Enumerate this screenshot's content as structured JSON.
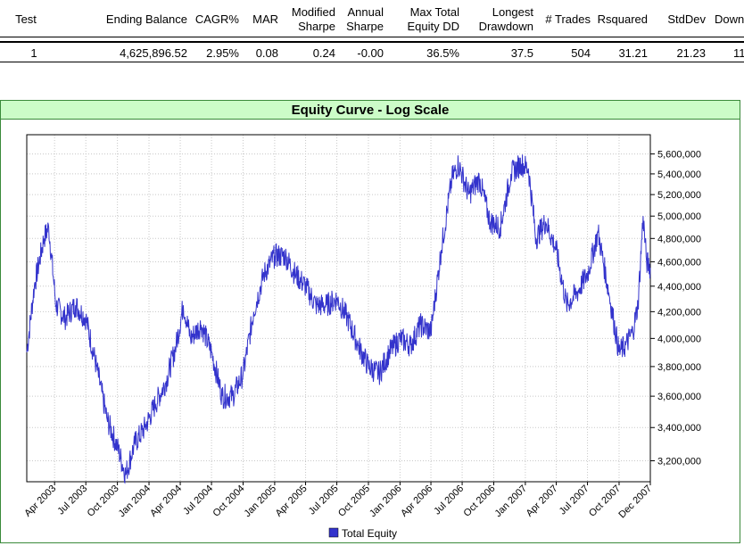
{
  "results_table": {
    "headers": [
      {
        "key": "test",
        "lines": [
          "Test"
        ]
      },
      {
        "key": "ending_balance",
        "lines": [
          "Ending Balance"
        ]
      },
      {
        "key": "cagr",
        "lines": [
          "CAGR%"
        ]
      },
      {
        "key": "mar",
        "lines": [
          "MAR"
        ]
      },
      {
        "key": "modified_sharpe",
        "lines": [
          "Modified",
          "Sharpe"
        ]
      },
      {
        "key": "annual_sharpe",
        "lines": [
          "Annual",
          "Sharpe"
        ]
      },
      {
        "key": "max_dd",
        "lines": [
          "Max Total",
          "Equity DD"
        ]
      },
      {
        "key": "longest_dd",
        "lines": [
          "Longest",
          "Drawdown"
        ]
      },
      {
        "key": "trades",
        "lines": [
          "# Trades"
        ]
      },
      {
        "key": "rsquared",
        "lines": [
          "Rsquared"
        ]
      },
      {
        "key": "stddev",
        "lines": [
          "StdDev"
        ]
      },
      {
        "key": "down",
        "lines": [
          "Down"
        ]
      }
    ],
    "row": [
      "1",
      "4,625,896.52",
      "2.95%",
      "0.08",
      "0.24",
      "-0.00",
      "36.5%",
      "37.5",
      "504",
      "31.21",
      "21.23",
      "11"
    ]
  },
  "chart_data": {
    "type": "line",
    "title": "Equity Curve - Log Scale",
    "y_scale": "log",
    "ylim": [
      3080000,
      5800000
    ],
    "y_ticks": [
      3200000,
      3400000,
      3600000,
      3800000,
      4000000,
      4200000,
      4400000,
      4600000,
      4800000,
      5000000,
      5200000,
      5400000,
      5600000
    ],
    "y_tick_labels": [
      "3,200,000",
      "3,400,000",
      "3,600,000",
      "3,800,000",
      "4,000,000",
      "4,200,000",
      "4,400,000",
      "4,600,000",
      "4,800,000",
      "5,000,000",
      "5,200,000",
      "5,400,000",
      "5,600,000"
    ],
    "xlim": [
      "2003-01-10",
      "2007-12-31"
    ],
    "x_ticks": [
      "2003-04-01",
      "2003-07-01",
      "2003-10-01",
      "2004-01-01",
      "2004-04-01",
      "2004-07-01",
      "2004-10-01",
      "2005-01-01",
      "2005-04-01",
      "2005-07-01",
      "2005-10-01",
      "2006-01-01",
      "2006-04-01",
      "2006-07-01",
      "2006-10-01",
      "2007-01-01",
      "2007-04-01",
      "2007-07-01",
      "2007-10-01",
      "2007-12-31"
    ],
    "x_tick_labels": [
      "Apr 2003",
      "Jul 2003",
      "Oct 2003",
      "Jan 2004",
      "Apr 2004",
      "Jul 2004",
      "Oct 2004",
      "Jan 2005",
      "Apr 2005",
      "Jul 2005",
      "Oct 2005",
      "Jan 2006",
      "Apr 2006",
      "Jul 2006",
      "Oct 2006",
      "Jan 2007",
      "Apr 2007",
      "Jul 2007",
      "Oct 2007",
      "Dec 2007"
    ],
    "grid": true,
    "legend_position": "bottom",
    "series": [
      {
        "name": "Total Equity",
        "color": "#3333cc",
        "points": [
          [
            "2003-01-10",
            3900000
          ],
          [
            "2003-02-01",
            4400000
          ],
          [
            "2003-03-01",
            4800000
          ],
          [
            "2003-03-15",
            4900000
          ],
          [
            "2003-04-05",
            4250000
          ],
          [
            "2003-05-01",
            4150000
          ],
          [
            "2003-06-01",
            4250000
          ],
          [
            "2003-07-01",
            4150000
          ],
          [
            "2003-08-01",
            3800000
          ],
          [
            "2003-09-01",
            3450000
          ],
          [
            "2003-10-01",
            3280000
          ],
          [
            "2003-10-25",
            3120000
          ],
          [
            "2003-11-20",
            3300000
          ],
          [
            "2003-12-20",
            3400000
          ],
          [
            "2004-01-20",
            3550000
          ],
          [
            "2004-02-20",
            3700000
          ],
          [
            "2004-03-20",
            3950000
          ],
          [
            "2004-04-10",
            4250000
          ],
          [
            "2004-05-01",
            4000000
          ],
          [
            "2004-06-01",
            4100000
          ],
          [
            "2004-07-01",
            3900000
          ],
          [
            "2004-08-01",
            3600000
          ],
          [
            "2004-09-01",
            3600000
          ],
          [
            "2004-10-01",
            3750000
          ],
          [
            "2004-11-01",
            4200000
          ],
          [
            "2004-12-01",
            4500000
          ],
          [
            "2005-01-01",
            4650000
          ],
          [
            "2005-02-01",
            4650000
          ],
          [
            "2005-03-01",
            4500000
          ],
          [
            "2005-04-01",
            4400000
          ],
          [
            "2005-05-01",
            4250000
          ],
          [
            "2005-06-01",
            4250000
          ],
          [
            "2005-07-01",
            4300000
          ],
          [
            "2005-08-01",
            4150000
          ],
          [
            "2005-09-01",
            3950000
          ],
          [
            "2005-10-01",
            3800000
          ],
          [
            "2005-11-01",
            3750000
          ],
          [
            "2005-12-01",
            3900000
          ],
          [
            "2006-01-01",
            4000000
          ],
          [
            "2006-02-01",
            3950000
          ],
          [
            "2006-03-01",
            4100000
          ],
          [
            "2006-04-01",
            4050000
          ],
          [
            "2006-05-01",
            4700000
          ],
          [
            "2006-06-01",
            5350000
          ],
          [
            "2006-06-20",
            5500000
          ],
          [
            "2006-07-20",
            5200000
          ],
          [
            "2006-08-20",
            5350000
          ],
          [
            "2006-09-20",
            4950000
          ],
          [
            "2006-10-20",
            4900000
          ],
          [
            "2006-11-20",
            5400000
          ],
          [
            "2006-12-20",
            5500000
          ],
          [
            "2007-01-10",
            5450000
          ],
          [
            "2007-02-01",
            4800000
          ],
          [
            "2007-03-01",
            4950000
          ],
          [
            "2007-04-01",
            4700000
          ],
          [
            "2007-05-01",
            4250000
          ],
          [
            "2007-06-01",
            4350000
          ],
          [
            "2007-07-01",
            4500000
          ],
          [
            "2007-08-01",
            4850000
          ],
          [
            "2007-09-01",
            4350000
          ],
          [
            "2007-10-01",
            3900000
          ],
          [
            "2007-10-20",
            3950000
          ],
          [
            "2007-11-10",
            4050000
          ],
          [
            "2007-11-25",
            4250000
          ],
          [
            "2007-12-10",
            5000000
          ],
          [
            "2007-12-20",
            4600000
          ],
          [
            "2007-12-31",
            4550000
          ]
        ]
      }
    ]
  }
}
